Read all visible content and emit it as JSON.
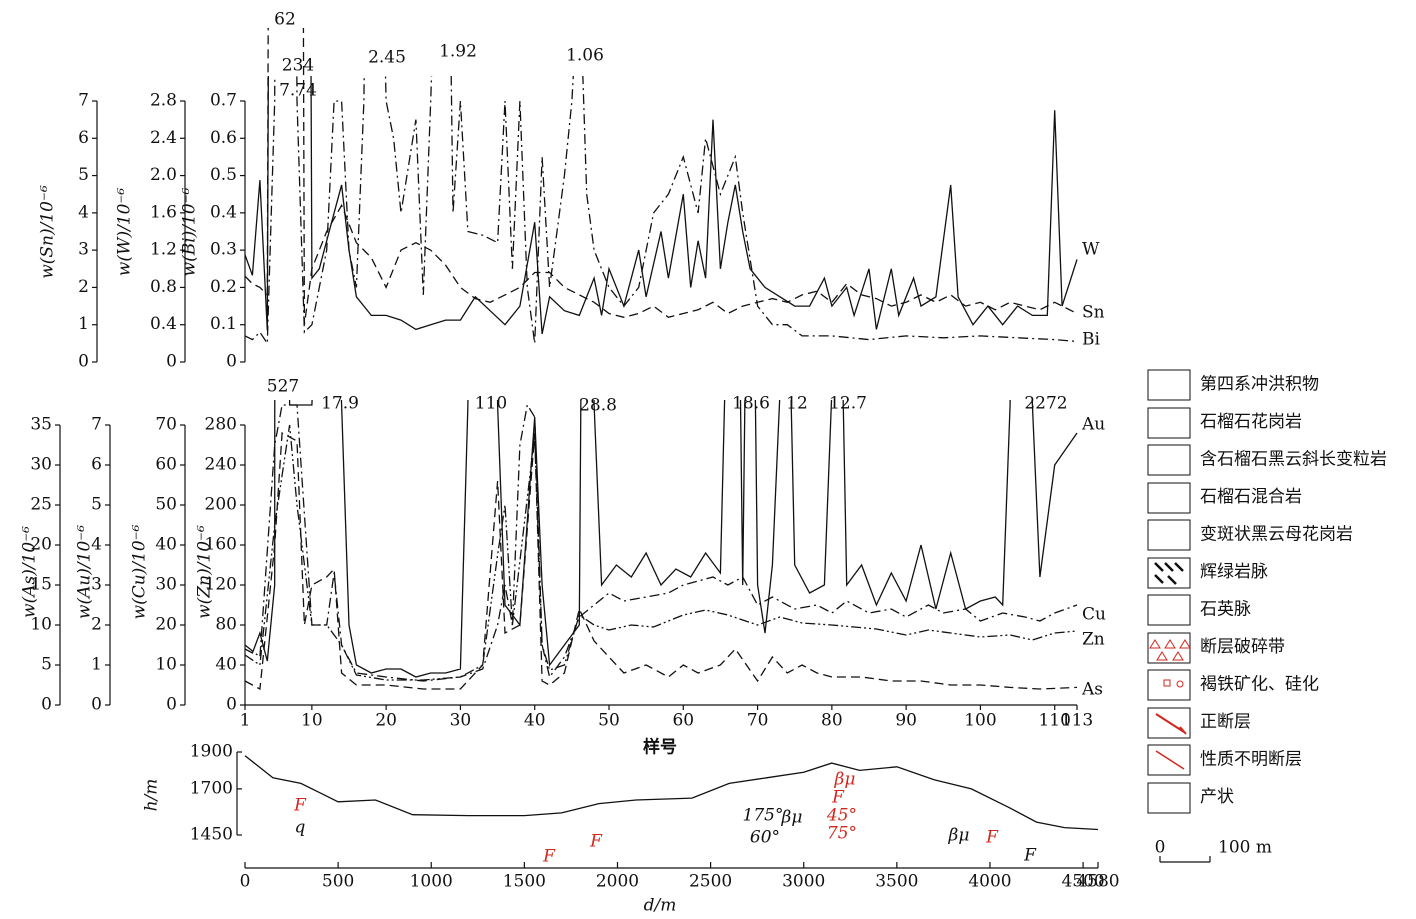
{
  "chart_data": [
    {
      "type": "line",
      "xlim": [
        1,
        113
      ],
      "axes": [
        {
          "label": "w(Sn)/10⁻⁶",
          "lim": [
            0,
            7
          ],
          "ticks": [
            0,
            1,
            2,
            3,
            4,
            5,
            6,
            7
          ]
        },
        {
          "label": "w(W)/10⁻⁶",
          "lim": [
            0,
            2.8
          ],
          "ticks": [
            0,
            0.4,
            0.8,
            1.2,
            1.6,
            {
              "value": 2,
              "label": "2.0"
            },
            2.4,
            2.8
          ]
        },
        {
          "label": "w(Bi)/10⁻⁶",
          "lim": [
            0,
            0.7
          ],
          "ticks": [
            0,
            0.1,
            0.2,
            0.3,
            0.4,
            0.5,
            0.6,
            0.7
          ]
        }
      ],
      "series": [
        {
          "name": "W",
          "axis": 1,
          "style": "solid",
          "x": [
            1,
            2,
            3,
            4,
            5,
            7,
            9,
            10,
            11,
            13,
            14,
            15,
            16,
            17,
            18,
            20,
            22,
            24,
            26,
            28,
            30,
            32,
            34,
            36,
            38,
            40,
            41,
            42,
            44,
            46,
            48,
            49,
            50,
            52,
            54,
            55,
            57,
            58,
            60,
            61,
            62,
            63,
            64,
            65,
            66,
            67,
            68,
            69,
            71,
            73,
            75,
            77,
            79,
            80,
            82,
            83,
            85,
            86,
            88,
            89,
            91,
            92,
            94,
            96,
            97,
            99,
            101,
            103,
            105,
            107,
            109,
            110,
            111,
            113
          ],
          "values": [
            1.15,
            0.93,
            1.95,
            0.34,
            20,
            234,
            20,
            0.9,
            1.0,
            1.6,
            1.9,
            1.2,
            0.7,
            0.6,
            0.5,
            0.5,
            0.45,
            0.35,
            0.4,
            0.45,
            0.45,
            0.7,
            0.55,
            0.4,
            0.6,
            1.5,
            0.3,
            0.7,
            0.55,
            0.5,
            0.9,
            0.5,
            1.0,
            0.6,
            1.2,
            0.7,
            1.4,
            0.9,
            1.8,
            0.8,
            1.3,
            0.9,
            2.6,
            1.0,
            1.5,
            1.9,
            1.4,
            1.0,
            0.8,
            0.7,
            0.6,
            0.6,
            0.9,
            0.6,
            0.8,
            0.5,
            1.0,
            0.35,
            1.0,
            0.5,
            0.9,
            0.6,
            0.7,
            1.9,
            0.7,
            0.4,
            0.6,
            0.4,
            0.6,
            0.5,
            0.5,
            2.7,
            0.6,
            1.1
          ]
        },
        {
          "name": "Sn",
          "axis": 0,
          "style": "dashed",
          "x": [
            1,
            2,
            3,
            4,
            5,
            8,
            9,
            10,
            12,
            14,
            16,
            18,
            20,
            22,
            24,
            26,
            28,
            30,
            32,
            34,
            36,
            38,
            40,
            42,
            44,
            46,
            48,
            50,
            52,
            54,
            56,
            58,
            60,
            62,
            64,
            66,
            68,
            70,
            72,
            74,
            76,
            78,
            80,
            82,
            84,
            86,
            88,
            90,
            92,
            94,
            96,
            98,
            100,
            102,
            104,
            106,
            108,
            110,
            113
          ],
          "values": [
            2.3,
            2.1,
            2.0,
            1.8,
            62,
            62,
            1.0,
            2.5,
            3.5,
            4.2,
            3.2,
            2.8,
            2.0,
            3.0,
            3.2,
            3.0,
            2.6,
            2.0,
            1.7,
            1.6,
            1.8,
            2.0,
            2.4,
            2.4,
            2.0,
            1.8,
            1.6,
            1.3,
            1.2,
            1.3,
            1.5,
            1.2,
            1.3,
            1.4,
            1.6,
            1.3,
            1.5,
            1.6,
            1.7,
            1.6,
            1.8,
            1.9,
            1.6,
            2.1,
            1.8,
            1.7,
            1.5,
            1.6,
            1.8,
            1.6,
            1.8,
            1.5,
            1.6,
            1.4,
            1.6,
            1.5,
            1.4,
            1.6,
            1.3
          ]
        },
        {
          "name": "Bi",
          "axis": 2,
          "style": "dashdot",
          "x": [
            1,
            2,
            3,
            4,
            5,
            6,
            8,
            9,
            10,
            12,
            13,
            14,
            15,
            16,
            17,
            18,
            20,
            21,
            22,
            24,
            25,
            26,
            28,
            29,
            30,
            31,
            33,
            35,
            36,
            37,
            38,
            39,
            40,
            41,
            42,
            44,
            45,
            46,
            47,
            48,
            50,
            52,
            54,
            56,
            58,
            60,
            62,
            63,
            65,
            67,
            68,
            70,
            72,
            74,
            76,
            80,
            85,
            90,
            95,
            100,
            105,
            110,
            113
          ],
          "values": [
            0.07,
            0.06,
            0.08,
            0.05,
            0.7,
            7.74,
            0.7,
            0.08,
            0.1,
            0.3,
            0.7,
            0.7,
            0.3,
            0.2,
            0.7,
            2.45,
            0.7,
            0.6,
            0.4,
            0.65,
            0.18,
            0.7,
            1.92,
            0.4,
            0.7,
            0.35,
            0.34,
            0.32,
            0.7,
            0.25,
            0.7,
            0.2,
            0.05,
            0.55,
            0.2,
            0.5,
            0.7,
            1.06,
            0.45,
            0.3,
            0.2,
            0.15,
            0.2,
            0.4,
            0.45,
            0.55,
            0.4,
            0.6,
            0.45,
            0.55,
            0.4,
            0.15,
            0.1,
            0.1,
            0.07,
            0.07,
            0.06,
            0.07,
            0.065,
            0.07,
            0.065,
            0.06,
            0.055
          ]
        }
      ],
      "annotations": [
        "62",
        "234",
        "7.74",
        "2.45",
        "1.92",
        "1.06"
      ]
    },
    {
      "type": "line",
      "xlim": [
        1,
        113
      ],
      "xlabel": "样号",
      "xticks": [
        1,
        10,
        20,
        30,
        40,
        50,
        60,
        70,
        80,
        90,
        100,
        110,
        113
      ],
      "axes": [
        {
          "label": "w(As)/10⁻⁶",
          "lim": [
            0,
            35
          ],
          "ticks": [
            0,
            5,
            10,
            15,
            20,
            25,
            30,
            35
          ]
        },
        {
          "label": "w(Au)/10⁻⁶",
          "lim": [
            0,
            7
          ],
          "ticks": [
            0,
            1,
            2,
            3,
            4,
            5,
            6,
            7
          ]
        },
        {
          "label": "w(Cu)/10⁻⁶",
          "lim": [
            0,
            70
          ],
          "ticks": [
            0,
            10,
            20,
            30,
            40,
            50,
            60,
            70
          ]
        },
        {
          "label": "w(Zn)/10⁻⁶",
          "lim": [
            0,
            280
          ],
          "ticks": [
            0,
            40,
            80,
            120,
            160,
            200,
            240,
            280
          ]
        }
      ],
      "series": [
        {
          "name": "Au",
          "axis": 1,
          "style": "solid",
          "x": [
            1,
            2,
            3,
            4,
            5,
            6,
            7,
            8,
            10,
            12,
            14,
            15,
            16,
            18,
            20,
            22,
            24,
            26,
            28,
            30,
            31,
            33,
            35,
            36,
            38,
            40,
            41,
            42,
            44,
            46,
            47,
            48,
            49,
            51,
            53,
            55,
            57,
            59,
            61,
            63,
            65,
            67,
            68,
            69,
            70,
            71,
            72,
            74,
            75,
            77,
            79,
            81,
            82,
            84,
            86,
            88,
            90,
            92,
            94,
            96,
            98,
            100,
            102,
            103,
            104,
            106,
            107,
            108,
            110,
            113
          ],
          "values": [
            1.4,
            1.3,
            1.8,
            1.1,
            3.0,
            527,
            7.5,
            7.5,
            7.5,
            17.9,
            7.5,
            2.0,
            1.0,
            0.8,
            0.9,
            0.9,
            0.7,
            0.8,
            0.8,
            0.9,
            7.5,
            110,
            7.5,
            2.5,
            2.0,
            7.2,
            3.0,
            1.0,
            1.5,
            2.0,
            28.8,
            7.5,
            3.0,
            3.5,
            3.2,
            3.8,
            3.0,
            3.4,
            3.2,
            3.8,
            3.3,
            18.6,
            3.0,
            18.6,
            3.0,
            1.8,
            3.5,
            12,
            3.5,
            2.8,
            3.0,
            12.7,
            3.0,
            3.5,
            2.5,
            3.3,
            2.6,
            4.0,
            2.4,
            3.8,
            2.4,
            2.6,
            2.7,
            2.5,
            7.5,
            2272,
            7.5,
            3.2,
            6.0,
            6.8
          ]
        },
        {
          "name": "Cu",
          "axis": 2,
          "style": "dashdot",
          "x": [
            1,
            3,
            5,
            6,
            8,
            10,
            12,
            13,
            14,
            16,
            20,
            25,
            30,
            33,
            35,
            36,
            37,
            38,
            39,
            40,
            41,
            42,
            44,
            46,
            48,
            50,
            52,
            55,
            58,
            60,
            62,
            64,
            66,
            68,
            70,
            72,
            75,
            78,
            80,
            82,
            85,
            88,
            90,
            93,
            95,
            98,
            100,
            103,
            106,
            108,
            110,
            113
          ],
          "values": [
            15,
            12,
            65,
            75,
            75,
            20,
            20,
            33,
            15,
            8,
            7,
            6,
            7,
            9,
            20,
            30,
            20,
            65,
            75,
            72,
            15,
            7,
            12,
            22,
            25,
            28,
            26,
            27,
            28,
            30,
            31,
            32,
            30,
            32,
            25,
            27,
            24,
            25,
            23,
            26,
            23,
            24,
            22,
            25,
            23,
            24,
            21,
            23,
            22,
            21,
            23,
            25
          ]
        },
        {
          "name": "Zn",
          "axis": 3,
          "style": "dashdotdot",
          "x": [
            1,
            3,
            5,
            7,
            8,
            10,
            12,
            14,
            16,
            20,
            25,
            30,
            33,
            35,
            36,
            37,
            40,
            41,
            42,
            44,
            46,
            48,
            50,
            53,
            56,
            60,
            63,
            66,
            70,
            73,
            76,
            80,
            83,
            86,
            90,
            93,
            96,
            100,
            104,
            107,
            110,
            113
          ],
          "values": [
            50,
            40,
            180,
            280,
            200,
            80,
            80,
            60,
            30,
            25,
            25,
            28,
            40,
            150,
            200,
            80,
            270,
            60,
            35,
            40,
            90,
            80,
            75,
            80,
            78,
            90,
            95,
            90,
            80,
            88,
            82,
            80,
            78,
            76,
            70,
            75,
            72,
            68,
            70,
            65,
            72,
            74
          ]
        },
        {
          "name": "As",
          "axis": 0,
          "style": "dashed",
          "x": [
            1,
            3,
            5,
            6,
            8,
            9,
            10,
            12,
            13,
            14,
            16,
            20,
            25,
            30,
            33,
            35,
            36,
            38,
            40,
            41,
            42,
            44,
            46,
            48,
            50,
            52,
            55,
            58,
            60,
            62,
            65,
            67,
            70,
            72,
            74,
            76,
            78,
            80,
            84,
            88,
            92,
            96,
            100,
            104,
            108,
            113
          ],
          "values": [
            3,
            2,
            20,
            34,
            33,
            10,
            15,
            16,
            17,
            4,
            2.5,
            2.5,
            2,
            2,
            5,
            28,
            9,
            10,
            34,
            3,
            2.5,
            4,
            12,
            8,
            6,
            4,
            5,
            3.5,
            5,
            4,
            5,
            7,
            3,
            6,
            4,
            5,
            4,
            3.5,
            3.5,
            3,
            3,
            2.5,
            2.5,
            2.2,
            2,
            2.2
          ]
        }
      ],
      "annotations": [
        "527",
        "17.9",
        "110",
        "28.8",
        "18.6",
        "12",
        "12.7",
        "2272"
      ]
    },
    {
      "type": "profile",
      "xlabel": "d/m",
      "ylabel": "h/m",
      "xlim": [
        0,
        4580
      ],
      "ylim": [
        1450,
        1900
      ],
      "xticks": [
        0,
        500,
        1000,
        1500,
        2000,
        2500,
        3000,
        3500,
        4000,
        4500,
        4580
      ],
      "yticks": [
        1450,
        1700,
        1900
      ],
      "x": [
        0,
        150,
        300,
        400,
        500,
        700,
        900,
        1200,
        1500,
        1700,
        1900,
        2100,
        2400,
        2600,
        2800,
        3000,
        3150,
        3300,
        3500,
        3700,
        3900,
        4100,
        4250,
        4400,
        4580
      ],
      "values": [
        1880,
        1760,
        1730,
        1680,
        1630,
        1640,
        1560,
        1555,
        1555,
        1570,
        1620,
        1640,
        1650,
        1730,
        1760,
        1790,
        1840,
        1800,
        1820,
        1750,
        1700,
        1600,
        1520,
        1490,
        1480
      ],
      "annotations": [
        "q",
        "F",
        "F",
        "F",
        "F",
        "175°",
        "60°",
        "βμ",
        "F",
        "45°",
        "75°",
        "βμ",
        "F",
        "βμ"
      ]
    }
  ],
  "legend": [
    "第四系冲洪积物",
    "石榴石花岗岩",
    "含石榴石黑云斜长变粒岩",
    "石榴石混合岩",
    "变斑状黑云母花岗岩",
    "辉绿岩脉",
    "石英脉",
    "断层破碎带",
    "褐铁矿化、硅化",
    "正断层",
    "性质不明断层",
    "产状"
  ],
  "scale_bar": [
    "0",
    "100 m"
  ]
}
